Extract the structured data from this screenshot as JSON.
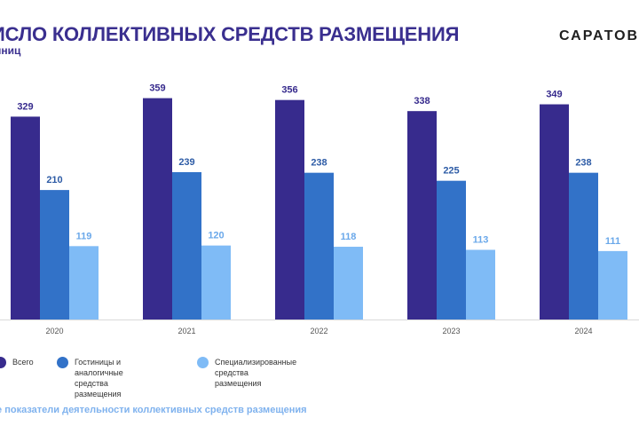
{
  "header": {
    "title": "ИСЛО КОЛЛЕКТИВНЫХ СРЕДСТВ РАЗМЕЩЕНИЯ",
    "subtitle": "иниц",
    "brand": "САРАТОВС"
  },
  "footer": {
    "text": "ные показатели деятельности коллективных средств размещения"
  },
  "chart_data": {
    "type": "bar",
    "title": "ИСЛО КОЛЛЕКТИВНЫХ СРЕДСТВ РАЗМЕЩЕНИЯ",
    "ylim": [
      0,
      380
    ],
    "grid": false,
    "legend_position": "bottom-left",
    "categories": [
      "2020",
      "2021",
      "2022",
      "2023",
      "2024"
    ],
    "series": [
      {
        "name": "Всего",
        "values": [
          329,
          359,
          356,
          338,
          349
        ],
        "color": "#372b8d",
        "label_color": "#372b8d"
      },
      {
        "name": "Гостиницы и аналогичные\nсредства размещения",
        "values": [
          210,
          239,
          238,
          225,
          238
        ],
        "color": "#3272c8",
        "label_color": "#2e5ca6"
      },
      {
        "name": "Специализированные\nсредства размещения",
        "values": [
          119,
          120,
          118,
          113,
          111
        ],
        "color": "#7fbbf6",
        "label_color": "#6aa8ea"
      }
    ]
  }
}
